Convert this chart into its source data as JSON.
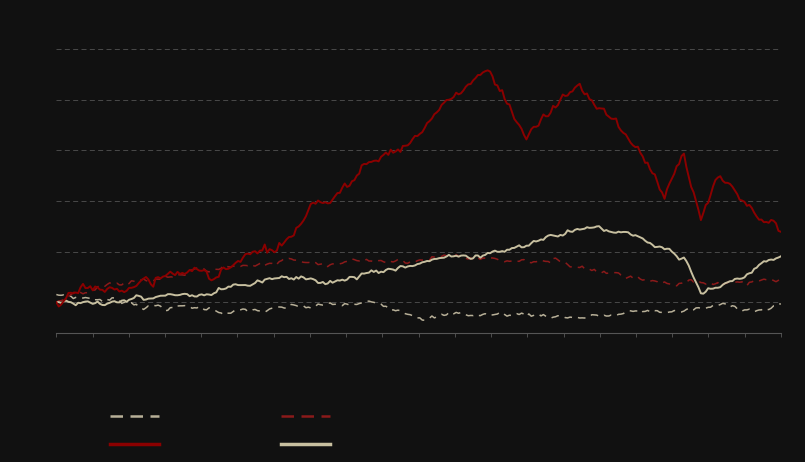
{
  "background_color": "#111111",
  "plot_bg_color": "#111111",
  "grid_color": "#888888",
  "n_points": 300,
  "figsize": [
    8.05,
    4.62
  ],
  "dpi": 100,
  "line_dark_dashed_color": "#c8c0a0",
  "line_red_dashed_color": "#8b1a1a",
  "line_red_solid_color": "#8b0000",
  "line_cream_solid_color": "#c8c0a0",
  "ylim_min": -0.3,
  "ylim_max": 2.8,
  "n_gridlines": 11,
  "legend_items": [
    {
      "label": "",
      "color": "#c0b898",
      "style": "dashed"
    },
    {
      "label": "",
      "color": "#8b1a1a",
      "style": "dashed"
    },
    {
      "label": "",
      "color": "#8b0000",
      "style": "solid"
    },
    {
      "label": "",
      "color": "#c8c0a0",
      "style": "solid"
    }
  ]
}
